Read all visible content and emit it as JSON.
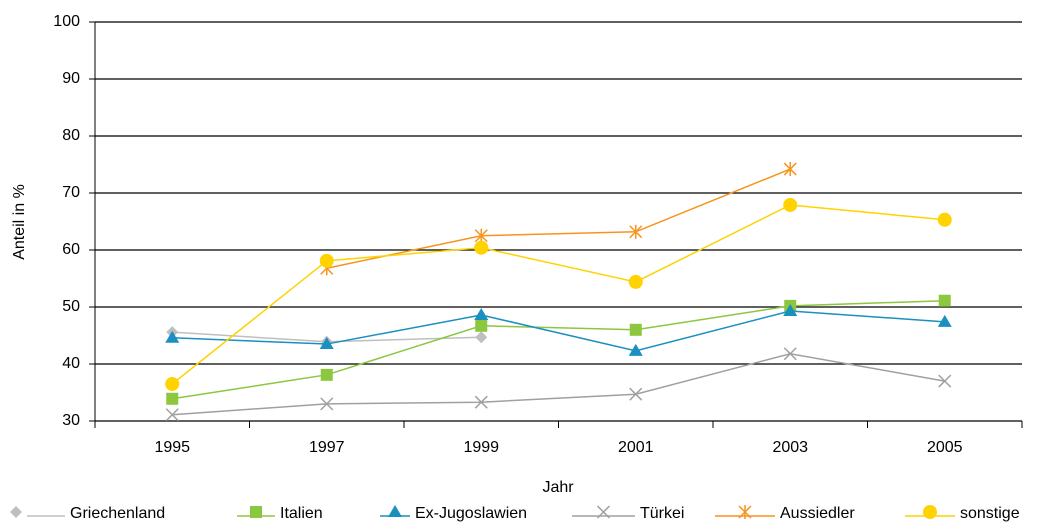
{
  "chart_data": {
    "type": "line",
    "x_label": "Jahr",
    "y_label": "Anteil in %",
    "categories": [
      "1995",
      "1997",
      "1999",
      "2001",
      "2003",
      "2005"
    ],
    "ylim": [
      30,
      100
    ],
    "yticks": [
      30,
      40,
      50,
      60,
      70,
      80,
      90,
      100
    ],
    "grid": true,
    "legend": "bottom",
    "series": [
      {
        "name": "Griechenland",
        "color": "#bfbfbf",
        "marker": "diamond",
        "values": [
          45.6,
          43.9,
          44.7,
          null,
          null,
          null
        ]
      },
      {
        "name": "Italien",
        "color": "#8dc63f",
        "marker": "square",
        "values": [
          33.9,
          38.1,
          46.7,
          46.0,
          50.2,
          51.1
        ]
      },
      {
        "name": "Ex-Jugoslawien",
        "color": "#1a8fc0",
        "marker": "triangle",
        "values": [
          44.6,
          43.5,
          48.6,
          42.3,
          49.3,
          47.4
        ]
      },
      {
        "name": "Türkei",
        "color": "#a0a0a0",
        "marker": "x",
        "values": [
          31.1,
          33.0,
          33.3,
          34.7,
          41.8,
          37.0
        ]
      },
      {
        "name": "Aussiedler",
        "color": "#f7941d",
        "marker": "asterisk",
        "values": [
          null,
          56.8,
          62.5,
          63.2,
          74.2,
          null
        ]
      },
      {
        "name": "sonstige",
        "color": "#ffd200",
        "marker": "circle",
        "values": [
          36.5,
          58.1,
          60.4,
          54.4,
          67.9,
          65.3
        ]
      }
    ]
  }
}
